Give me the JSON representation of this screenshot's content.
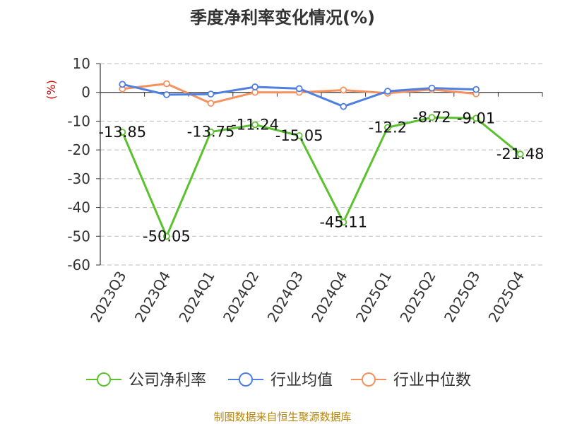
{
  "chart_data": {
    "type": "line",
    "title": "季度净利率变化情况(%)",
    "unit_label": "(%)",
    "categories": [
      "2023Q3",
      "2023Q4",
      "2024Q1",
      "2024Q2",
      "2024Q3",
      "2024Q4",
      "2025Q1",
      "2025Q2",
      "2025Q3",
      "2025Q4"
    ],
    "ylim": [
      -60,
      10
    ],
    "yticks": [
      "10",
      "0",
      "-10",
      "-20",
      "-30",
      "-40",
      "-50",
      "-60"
    ],
    "grid": true,
    "legend_position": "bottom",
    "series": [
      {
        "name": "公司净利率",
        "color": "#5cc12e",
        "values": [
          -13.85,
          -50.05,
          -13.75,
          -11.24,
          -15.05,
          -45.11,
          -12.2,
          -8.72,
          -9.01,
          -21.48
        ],
        "labels": [
          "-13.85",
          "-50.05",
          "-13.75",
          "-11.24",
          "-15.05",
          "-45.11",
          "-12.2",
          "-8.72",
          "-9.01",
          "-21.48"
        ]
      },
      {
        "name": "行业均值",
        "color": "#4f7fe0",
        "values": [
          2.8,
          -0.8,
          -0.6,
          1.9,
          1.3,
          -4.9,
          0.4,
          1.5,
          1.0,
          null
        ]
      },
      {
        "name": "行业中位数",
        "color": "#f4915e",
        "values": [
          1.2,
          3.0,
          -3.8,
          0.0,
          0.0,
          0.8,
          -0.3,
          1.0,
          -0.5,
          null
        ]
      }
    ]
  },
  "footer": {
    "source": "制图数据来自恒生聚源数据库"
  }
}
